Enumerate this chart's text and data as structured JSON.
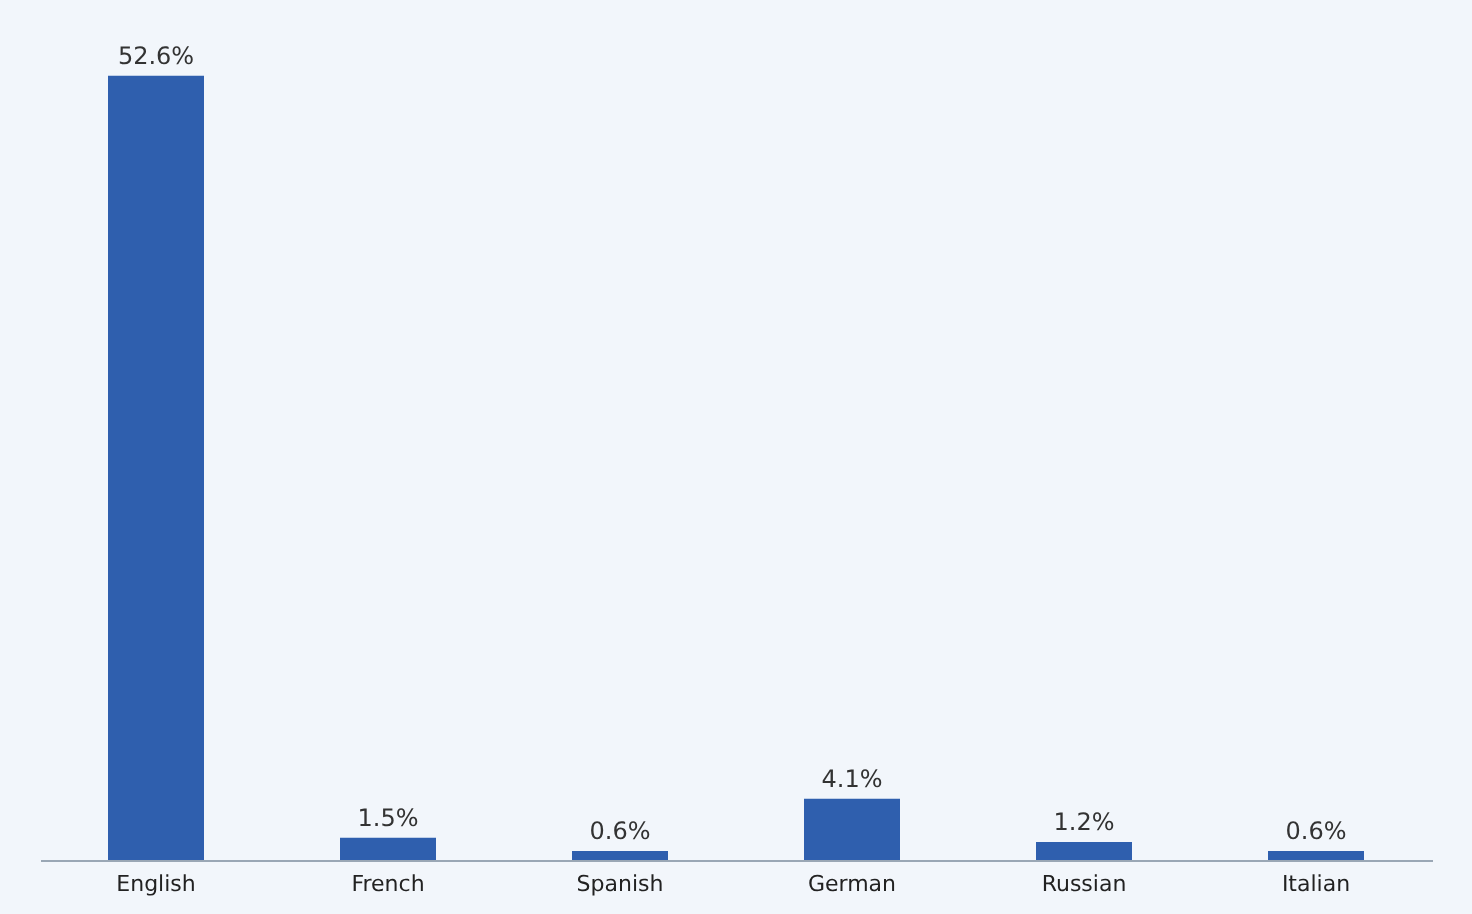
{
  "chart_data": {
    "type": "bar",
    "categories": [
      "English",
      "French",
      "Spanish",
      "German",
      "Russian",
      "Italian"
    ],
    "values": [
      52.6,
      1.5,
      0.6,
      4.1,
      1.2,
      0.6
    ],
    "value_labels": [
      "52.6%",
      "1.5%",
      "0.6%",
      "4.1%",
      "1.2%",
      "0.6%"
    ],
    "color": "#2f5fae",
    "grid": false
  }
}
